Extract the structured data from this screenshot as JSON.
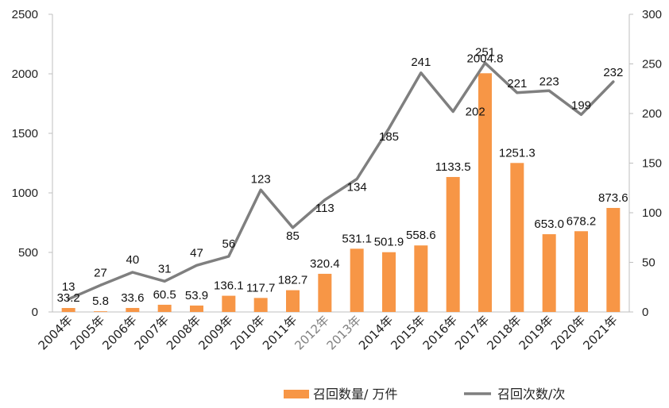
{
  "chart_data": {
    "type": "bar",
    "categories": [
      "2004年",
      "2005年",
      "2006年",
      "2007年",
      "2008年",
      "2009年",
      "2010年",
      "2011年",
      "2012年",
      "2013年",
      "2014年",
      "2015年",
      "2016年",
      "2017年",
      "2018年",
      "2019年",
      "2020年",
      "2021年"
    ],
    "muted_categories": [
      "2012年",
      "2013年"
    ],
    "series": [
      {
        "name": "召回数量/ 万件",
        "type": "bar",
        "axis": "left",
        "color": "#F79646",
        "values": [
          33.2,
          5.8,
          33.6,
          60.5,
          53.9,
          136.1,
          117.7,
          182.7,
          320.4,
          531.1,
          501.9,
          558.6,
          1133.5,
          2004.8,
          1251.3,
          653.0,
          678.2,
          873.6
        ],
        "labels": [
          "33.2",
          "5.8",
          "33.6",
          "60.5",
          "53.9",
          "136.1",
          "117.7",
          "182.7",
          "320.4",
          "531.1",
          "501.9",
          "558.6",
          "1133.5",
          "2004.8",
          "1251.3",
          "653.0",
          "678.2",
          "873.6"
        ]
      },
      {
        "name": "召回次数/次",
        "type": "line",
        "axis": "right",
        "color": "#7F7F7F",
        "values": [
          13,
          27,
          40,
          31,
          47,
          56,
          123,
          85,
          113,
          134,
          185,
          241,
          202,
          251,
          221,
          223,
          199,
          232
        ],
        "labels": [
          "13",
          "27",
          "40",
          "31",
          "47",
          "56",
          "123",
          "85",
          "113",
          "134",
          "185",
          "241",
          "202",
          "251",
          "221",
          "223",
          "199",
          "232"
        ]
      }
    ],
    "left_axis": {
      "min": 0,
      "max": 2500,
      "ticks": [
        "0",
        "500",
        "1000",
        "1500",
        "2000",
        "2500"
      ]
    },
    "right_axis": {
      "min": 0,
      "max": 300,
      "ticks": [
        "0",
        "50",
        "100",
        "150",
        "200",
        "250",
        "300"
      ]
    },
    "grid": false,
    "legend_position": "bottom"
  }
}
